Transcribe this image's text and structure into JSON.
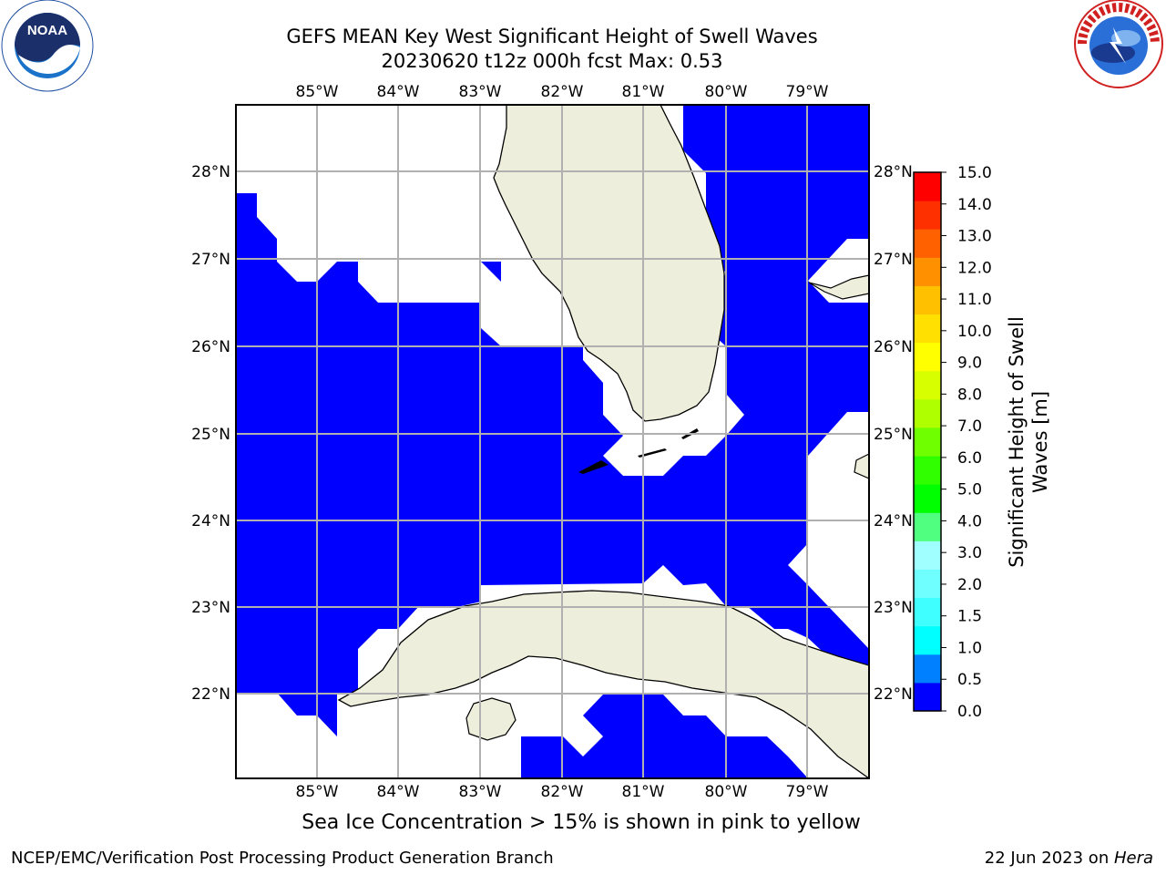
{
  "header": {
    "title_line1": "GEFS MEAN Key West Significant Height of Swell Waves",
    "title_line2": "20230620 t12z 000h fcst   Max: 0.53"
  },
  "logos": {
    "left": {
      "icon": "noaa-logo-icon",
      "text": "NOAA"
    },
    "right": {
      "icon": "nws-logo-icon",
      "text": "NATIONAL WEATHER SERVICE"
    }
  },
  "map": {
    "lon_labels": [
      "85°W",
      "84°W",
      "83°W",
      "82°W",
      "81°W",
      "80°W",
      "79°W"
    ],
    "lat_labels": [
      "28°N",
      "27°N",
      "26°N",
      "25°N",
      "24°N",
      "23°N",
      "22°N"
    ],
    "colors": {
      "ocean_field": "#0000ff",
      "land": "#eeeedc",
      "coast": "#000000",
      "grid": "#b0b0b0"
    }
  },
  "colorbar": {
    "label_line1": "Significant Height of Swell",
    "label_line2": "Waves [m]",
    "ticks": [
      "0.0",
      "0.5",
      "1.0",
      "1.5",
      "2.0",
      "3.0",
      "4.0",
      "5.0",
      "6.0",
      "7.0",
      "8.0",
      "9.0",
      "10.0",
      "11.0",
      "12.0",
      "13.0",
      "14.0",
      "15.0"
    ],
    "colors": [
      "#0000ff",
      "#0080ff",
      "#00ffff",
      "#40ffff",
      "#70ffff",
      "#a0ffff",
      "#50ff80",
      "#00ff00",
      "#30ff00",
      "#70ff00",
      "#b0ff00",
      "#d8ff00",
      "#ffff00",
      "#ffe000",
      "#ffc000",
      "#ff9000",
      "#ff6000",
      "#ff3000",
      "#ff0000"
    ]
  },
  "note": "Sea Ice Concentration > 15% is shown in pink to yellow",
  "footer": {
    "left": "NCEP/EMC/Verification Post Processing Product Generation Branch",
    "right_date": "22 Jun 2023 on ",
    "right_host": "Hera"
  }
}
